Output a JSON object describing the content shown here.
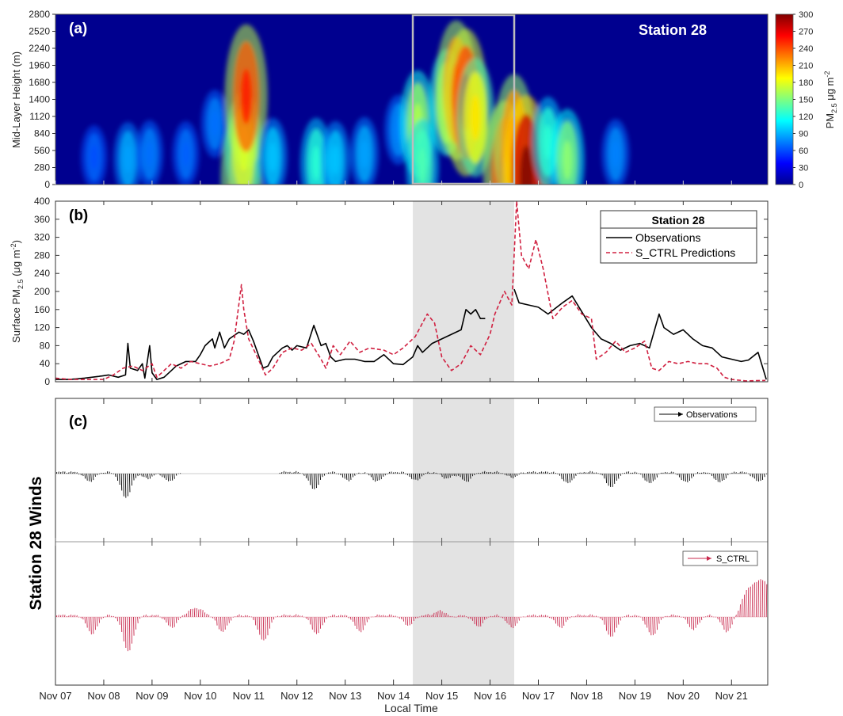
{
  "chart_data": [
    {
      "panel": "(a)",
      "type": "heatmap",
      "station_label": "Station 28",
      "ylabel": "Mid-Layer Height (m)",
      "ylim": [
        0,
        2800
      ],
      "yticks": [
        "0",
        "280",
        "560",
        "840",
        "1120",
        "1400",
        "1680",
        "1960",
        "2240",
        "2520",
        "2800"
      ],
      "colorbar": {
        "label_main": "PM",
        "label_sub": "2.5",
        "label_unit": " μg m",
        "label_sup": "-2",
        "range": [
          0,
          300
        ],
        "ticks": [
          "0",
          "30",
          "60",
          "90",
          "120",
          "150",
          "180",
          "210",
          "240",
          "270",
          "300"
        ],
        "colormap": "jet"
      },
      "x_days": [
        7,
        21.75
      ],
      "highlight_days": [
        14.4,
        16.5
      ],
      "hotspots": [
        {
          "day": 7.8,
          "height": 450,
          "value": 45
        },
        {
          "day": 8.5,
          "height": 420,
          "value": 70
        },
        {
          "day": 8.95,
          "height": 500,
          "value": 55
        },
        {
          "day": 9.7,
          "height": 500,
          "value": 50
        },
        {
          "day": 10.3,
          "height": 1000,
          "value": 55
        },
        {
          "day": 10.85,
          "height": 100,
          "value": 220
        },
        {
          "day": 10.9,
          "height": 600,
          "value": 170
        },
        {
          "day": 10.95,
          "height": 1450,
          "value": 240
        },
        {
          "day": 11.5,
          "height": 450,
          "value": 80
        },
        {
          "day": 12.4,
          "height": 350,
          "value": 110
        },
        {
          "day": 12.8,
          "height": 400,
          "value": 80
        },
        {
          "day": 13.4,
          "height": 500,
          "value": 70
        },
        {
          "day": 14.1,
          "height": 900,
          "value": 60
        },
        {
          "day": 14.5,
          "height": 1000,
          "value": 150
        },
        {
          "day": 14.6,
          "height": 300,
          "value": 120
        },
        {
          "day": 15.1,
          "height": 1350,
          "value": 150
        },
        {
          "day": 15.3,
          "height": 1550,
          "value": 230
        },
        {
          "day": 15.5,
          "height": 1350,
          "value": 250
        },
        {
          "day": 15.7,
          "height": 1100,
          "value": 180
        },
        {
          "day": 16.3,
          "height": 200,
          "value": 240
        },
        {
          "day": 16.5,
          "height": 700,
          "value": 220
        },
        {
          "day": 16.75,
          "height": 120,
          "value": 290
        },
        {
          "day": 17.2,
          "height": 700,
          "value": 110
        },
        {
          "day": 17.6,
          "height": 400,
          "value": 140
        },
        {
          "day": 18.6,
          "height": 500,
          "value": 60
        }
      ]
    },
    {
      "panel": "(b)",
      "type": "line",
      "ylabel_main": "Surface PM",
      "ylabel_sub": "2.5",
      "ylabel_unit": " (μg m",
      "ylabel_sup": "-2",
      "ylabel_end": ")",
      "ylim": [
        0,
        400
      ],
      "yticks": [
        "0",
        "40",
        "80",
        "120",
        "160",
        "200",
        "240",
        "280",
        "320",
        "360",
        "400"
      ],
      "legend": {
        "title": "Station 28",
        "position": "top-right"
      },
      "highlight_days": [
        14.4,
        16.5
      ],
      "series": [
        {
          "name": "Observations",
          "style": "solid",
          "color": "#000000",
          "points": [
            [
              7.0,
              5
            ],
            [
              7.3,
              5
            ],
            [
              7.6,
              8
            ],
            [
              7.9,
              12
            ],
            [
              8.1,
              15
            ],
            [
              8.3,
              10
            ],
            [
              8.45,
              15
            ],
            [
              8.5,
              85
            ],
            [
              8.55,
              30
            ],
            [
              8.7,
              25
            ],
            [
              8.8,
              40
            ],
            [
              8.85,
              8
            ],
            [
              8.95,
              80
            ],
            [
              9.0,
              20
            ],
            [
              9.1,
              5
            ],
            [
              9.25,
              10
            ],
            [
              9.4,
              25
            ],
            [
              9.5,
              35
            ],
            [
              9.7,
              45
            ],
            [
              9.9,
              45
            ],
            [
              10.0,
              60
            ],
            [
              10.1,
              80
            ],
            [
              10.25,
              95
            ],
            [
              10.3,
              75
            ],
            [
              10.4,
              110
            ],
            [
              10.5,
              75
            ],
            [
              10.6,
              95
            ],
            [
              10.8,
              110
            ],
            [
              10.9,
              105
            ],
            [
              11.0,
              115
            ],
            [
              11.1,
              90
            ],
            [
              11.2,
              60
            ],
            [
              11.3,
              30
            ],
            [
              11.4,
              35
            ],
            [
              11.5,
              55
            ],
            [
              11.7,
              75
            ],
            [
              11.8,
              80
            ],
            [
              11.9,
              70
            ],
            [
              12.0,
              80
            ],
            [
              12.2,
              75
            ],
            [
              12.35,
              125
            ],
            [
              12.5,
              80
            ],
            [
              12.6,
              85
            ],
            [
              12.7,
              55
            ],
            [
              12.8,
              45
            ],
            [
              13.0,
              50
            ],
            [
              13.2,
              50
            ],
            [
              13.4,
              45
            ],
            [
              13.6,
              45
            ],
            [
              13.8,
              60
            ],
            [
              14.0,
              40
            ],
            [
              14.2,
              38
            ],
            [
              14.4,
              55
            ],
            [
              14.5,
              80
            ],
            [
              14.6,
              65
            ],
            [
              14.8,
              85
            ],
            [
              15.0,
              95
            ],
            [
              15.2,
              105
            ],
            [
              15.4,
              115
            ],
            [
              15.5,
              160
            ],
            [
              15.6,
              150
            ],
            [
              15.7,
              160
            ],
            [
              15.8,
              140
            ],
            [
              15.9,
              140
            ]
          ]
        },
        {
          "name": "Observations",
          "style": "solid",
          "color": "#000000",
          "points": [
            [
              16.5,
              205
            ],
            [
              16.6,
              175
            ],
            [
              16.8,
              170
            ],
            [
              17.0,
              165
            ],
            [
              17.2,
              150
            ],
            [
              17.5,
              175
            ],
            [
              17.7,
              190
            ],
            [
              17.9,
              155
            ],
            [
              18.1,
              120
            ],
            [
              18.3,
              95
            ],
            [
              18.5,
              85
            ],
            [
              18.7,
              70
            ],
            [
              18.9,
              80
            ],
            [
              19.1,
              85
            ],
            [
              19.3,
              75
            ],
            [
              19.5,
              150
            ],
            [
              19.6,
              120
            ],
            [
              19.8,
              105
            ],
            [
              20.0,
              115
            ],
            [
              20.2,
              95
            ],
            [
              20.4,
              80
            ],
            [
              20.6,
              75
            ],
            [
              20.8,
              55
            ],
            [
              21.0,
              50
            ],
            [
              21.2,
              45
            ],
            [
              21.35,
              48
            ],
            [
              21.55,
              65
            ],
            [
              21.65,
              30
            ],
            [
              21.72,
              5
            ]
          ]
        },
        {
          "name": "S_CTRL Predictions",
          "style": "dashed",
          "color": "#d02040",
          "points": [
            [
              7.0,
              8
            ],
            [
              7.3,
              5
            ],
            [
              7.6,
              5
            ],
            [
              8.0,
              5
            ],
            [
              8.2,
              15
            ],
            [
              8.4,
              30
            ],
            [
              8.6,
              35
            ],
            [
              8.8,
              25
            ],
            [
              9.0,
              40
            ],
            [
              9.1,
              10
            ],
            [
              9.25,
              25
            ],
            [
              9.4,
              40
            ],
            [
              9.6,
              30
            ],
            [
              9.8,
              45
            ],
            [
              10.0,
              40
            ],
            [
              10.2,
              35
            ],
            [
              10.4,
              40
            ],
            [
              10.6,
              50
            ],
            [
              10.7,
              90
            ],
            [
              10.85,
              215
            ],
            [
              10.9,
              160
            ],
            [
              11.0,
              95
            ],
            [
              11.2,
              50
            ],
            [
              11.35,
              15
            ],
            [
              11.5,
              30
            ],
            [
              11.7,
              65
            ],
            [
              11.9,
              75
            ],
            [
              12.1,
              70
            ],
            [
              12.3,
              85
            ],
            [
              12.5,
              50
            ],
            [
              12.6,
              30
            ],
            [
              12.75,
              80
            ],
            [
              12.9,
              60
            ],
            [
              13.1,
              90
            ],
            [
              13.3,
              65
            ],
            [
              13.5,
              75
            ],
            [
              13.8,
              70
            ],
            [
              14.0,
              60
            ],
            [
              14.2,
              75
            ],
            [
              14.45,
              100
            ],
            [
              14.6,
              130
            ],
            [
              14.7,
              150
            ],
            [
              14.85,
              130
            ],
            [
              15.0,
              55
            ],
            [
              15.2,
              25
            ],
            [
              15.4,
              40
            ],
            [
              15.6,
              80
            ],
            [
              15.8,
              60
            ],
            [
              16.0,
              105
            ],
            [
              16.1,
              150
            ],
            [
              16.3,
              200
            ],
            [
              16.45,
              170
            ],
            [
              16.55,
              400
            ],
            [
              16.65,
              280
            ],
            [
              16.8,
              250
            ],
            [
              16.95,
              315
            ],
            [
              17.1,
              250
            ],
            [
              17.3,
              140
            ],
            [
              17.5,
              165
            ],
            [
              17.7,
              180
            ],
            [
              17.9,
              150
            ],
            [
              18.1,
              140
            ],
            [
              18.2,
              50
            ],
            [
              18.4,
              65
            ],
            [
              18.6,
              90
            ],
            [
              18.8,
              65
            ],
            [
              19.0,
              75
            ],
            [
              19.2,
              90
            ],
            [
              19.35,
              30
            ],
            [
              19.5,
              25
            ],
            [
              19.7,
              45
            ],
            [
              19.9,
              40
            ],
            [
              20.1,
              45
            ],
            [
              20.3,
              40
            ],
            [
              20.5,
              40
            ],
            [
              20.7,
              30
            ],
            [
              20.85,
              10
            ],
            [
              21.0,
              5
            ],
            [
              21.3,
              2
            ],
            [
              21.7,
              3
            ]
          ]
        }
      ]
    },
    {
      "panel": "(c)",
      "type": "wind-vectors",
      "ylabel": "Station 28 Winds",
      "xlabel": "Local Time",
      "x_ticklabels": [
        "Nov 07",
        "Nov 08",
        "Nov 09",
        "Nov 10",
        "Nov 11",
        "Nov 12",
        "Nov 13",
        "Nov 14",
        "Nov 15",
        "Nov 16",
        "Nov 17",
        "Nov 18",
        "Nov 19",
        "Nov 20",
        "Nov 21"
      ],
      "highlight_days": [
        14.4,
        16.5
      ],
      "series": [
        {
          "name": "Observations",
          "color": "#000000",
          "gaps": [
            [
              9.6,
              11.6
            ]
          ],
          "dips": [
            [
              7.7,
              0.5
            ],
            [
              8.45,
              1.35
            ],
            [
              8.9,
              0.35
            ],
            [
              9.35,
              0.5
            ],
            [
              12.35,
              0.9
            ],
            [
              13.05,
              0.45
            ],
            [
              13.65,
              0.5
            ],
            [
              14.45,
              0.45
            ],
            [
              15.1,
              0.35
            ],
            [
              15.5,
              0.5
            ],
            [
              16.45,
              0.3
            ],
            [
              17.6,
              0.6
            ],
            [
              18.5,
              0.8
            ],
            [
              19.3,
              0.6
            ],
            [
              20.05,
              0.55
            ],
            [
              20.75,
              0.55
            ],
            [
              21.55,
              0.5
            ]
          ]
        },
        {
          "name": "S_CTRL",
          "color": "#c8284c",
          "gaps": [],
          "dips": [
            [
              7.75,
              0.9
            ],
            [
              8.5,
              1.75
            ],
            [
              9.4,
              0.6
            ],
            [
              10.45,
              0.8
            ],
            [
              11.3,
              1.25
            ],
            [
              12.4,
              0.9
            ],
            [
              13.3,
              0.8
            ],
            [
              14.3,
              0.5
            ],
            [
              15.15,
              0.3
            ],
            [
              15.75,
              0.55
            ],
            [
              16.45,
              0.6
            ],
            [
              17.45,
              0.6
            ],
            [
              18.5,
              1.05
            ],
            [
              19.35,
              1.0
            ],
            [
              20.2,
              0.7
            ],
            [
              20.9,
              0.8
            ]
          ],
          "bumps": [
            [
              9.9,
              0.35
            ],
            [
              15.05,
              0.35
            ],
            [
              21.35,
              1.2
            ],
            [
              21.65,
              1.6
            ]
          ]
        }
      ]
    }
  ]
}
